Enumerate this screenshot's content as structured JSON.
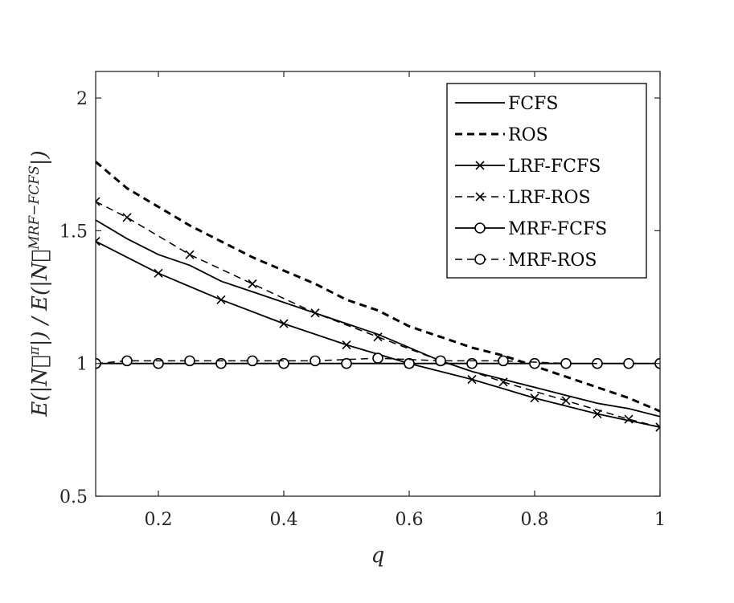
{
  "chart_data": {
    "type": "line",
    "xlabel": "q",
    "ylabel": "E(|N⃗^π|) / E(|N⃗^{MRF−FCFS}|)",
    "xlim": [
      0.1,
      1.0
    ],
    "ylim": [
      0.5,
      2.1
    ],
    "x_ticks": [
      "0.2",
      "0.4",
      "0.6",
      "0.8",
      "1"
    ],
    "y_ticks": [
      "0.5",
      "1",
      "1.5",
      "2"
    ],
    "grid": false,
    "legend_position": "top-right",
    "series": [
      {
        "name": "FCFS",
        "style": "solid",
        "marker": "none",
        "x": [
          0.1,
          0.15,
          0.2,
          0.25,
          0.3,
          0.35,
          0.4,
          0.45,
          0.5,
          0.55,
          0.6,
          0.65,
          0.7,
          0.75,
          0.8,
          0.85,
          0.9,
          0.95,
          1.0
        ],
        "values": [
          1.54,
          1.47,
          1.41,
          1.37,
          1.31,
          1.27,
          1.23,
          1.19,
          1.15,
          1.11,
          1.06,
          1.01,
          0.97,
          0.94,
          0.91,
          0.88,
          0.85,
          0.83,
          0.8
        ]
      },
      {
        "name": "ROS",
        "style": "dashed-bold",
        "marker": "none",
        "x": [
          0.1,
          0.15,
          0.2,
          0.25,
          0.3,
          0.35,
          0.4,
          0.45,
          0.5,
          0.55,
          0.6,
          0.65,
          0.7,
          0.75,
          0.8,
          0.85,
          0.9,
          0.95,
          1.0
        ],
        "values": [
          1.76,
          1.66,
          1.59,
          1.52,
          1.46,
          1.4,
          1.35,
          1.3,
          1.24,
          1.2,
          1.14,
          1.1,
          1.06,
          1.03,
          0.99,
          0.95,
          0.91,
          0.87,
          0.82
        ]
      },
      {
        "name": "LRF-FCFS",
        "style": "solid",
        "marker": "x",
        "x": [
          0.1,
          0.2,
          0.3,
          0.4,
          0.5,
          0.6,
          0.7,
          0.8,
          0.9,
          1.0
        ],
        "values": [
          1.46,
          1.34,
          1.24,
          1.15,
          1.07,
          1.0,
          0.94,
          0.87,
          0.81,
          0.76
        ]
      },
      {
        "name": "LRF-ROS",
        "style": "dashed",
        "marker": "x",
        "x": [
          0.1,
          0.15,
          0.25,
          0.35,
          0.45,
          0.55,
          0.65,
          0.75,
          0.85,
          0.95,
          1.0
        ],
        "values": [
          1.61,
          1.55,
          1.41,
          1.3,
          1.19,
          1.1,
          1.01,
          0.93,
          0.86,
          0.79,
          0.76
        ]
      },
      {
        "name": "MRF-FCFS",
        "style": "solid",
        "marker": "o",
        "x": [
          0.1,
          0.2,
          0.3,
          0.4,
          0.5,
          0.6,
          0.7,
          0.8,
          0.9,
          1.0
        ],
        "values": [
          1.0,
          1.0,
          1.0,
          1.0,
          1.0,
          1.0,
          1.0,
          1.0,
          1.0,
          1.0
        ]
      },
      {
        "name": "MRF-ROS",
        "style": "dashed",
        "marker": "o",
        "x": [
          0.1,
          0.15,
          0.25,
          0.35,
          0.45,
          0.55,
          0.65,
          0.75,
          0.85,
          0.95,
          1.0
        ],
        "values": [
          1.0,
          1.01,
          1.01,
          1.01,
          1.01,
          1.02,
          1.01,
          1.01,
          1.0,
          1.0,
          1.0
        ]
      }
    ]
  },
  "colors": {
    "line": "#000000",
    "axis": "#262626",
    "background": "#ffffff"
  }
}
